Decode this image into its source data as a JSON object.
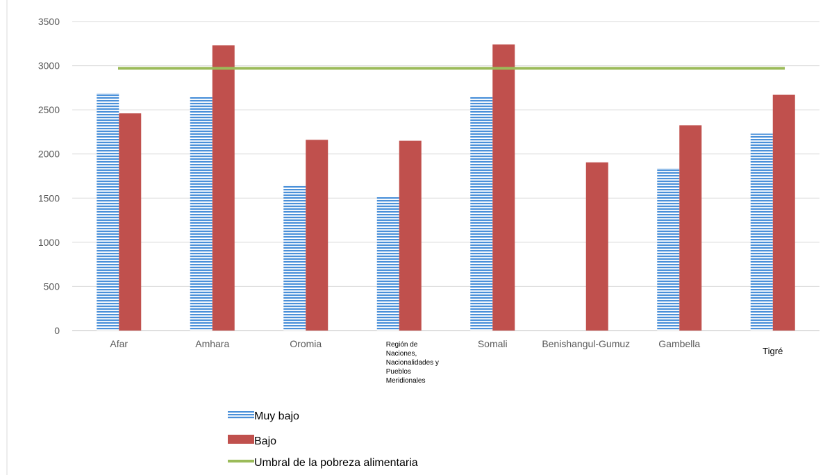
{
  "chart_data": {
    "type": "bar",
    "categories": [
      "Afar",
      "Amhara",
      "Oromia",
      "Región de Naciones, Nacionalidades y Pueblos Meridionales",
      "Somali",
      "Benishangul-Gumuz",
      "Gambella",
      "Tigré"
    ],
    "category_lines": [
      [
        "Afar"
      ],
      [
        "Amhara"
      ],
      [
        "Oromia"
      ],
      [
        "Región de",
        "Naciones,",
        "Nacionalidades y",
        "Pueblos",
        "Meridionales"
      ],
      [
        "Somali"
      ],
      [
        "Benishangul-Gumuz"
      ],
      [
        "Gambella"
      ],
      [
        "Tigré"
      ]
    ],
    "series": [
      {
        "name": "Muy bajo",
        "values": [
          2690,
          2650,
          1650,
          1520,
          2655,
          null,
          1840,
          2230
        ],
        "color": "#4a90d9",
        "pattern": "horizontal-stripes"
      },
      {
        "name": "Bajo",
        "values": [
          2460,
          3230,
          2160,
          2150,
          3240,
          1905,
          2325,
          2670
        ],
        "color": "#c0504d"
      }
    ],
    "threshold": {
      "name": "Umbral de la pobreza alimentaria",
      "value": 2970,
      "color": "#9bbb59"
    },
    "y_ticks": [
      "0",
      "500",
      "1000",
      "1500",
      "2000",
      "2500",
      "3000",
      "3500"
    ],
    "ylim": [
      0,
      3500
    ],
    "title": "",
    "xlabel": "",
    "ylabel": "",
    "grid": true,
    "legend_position": "bottom-left"
  }
}
